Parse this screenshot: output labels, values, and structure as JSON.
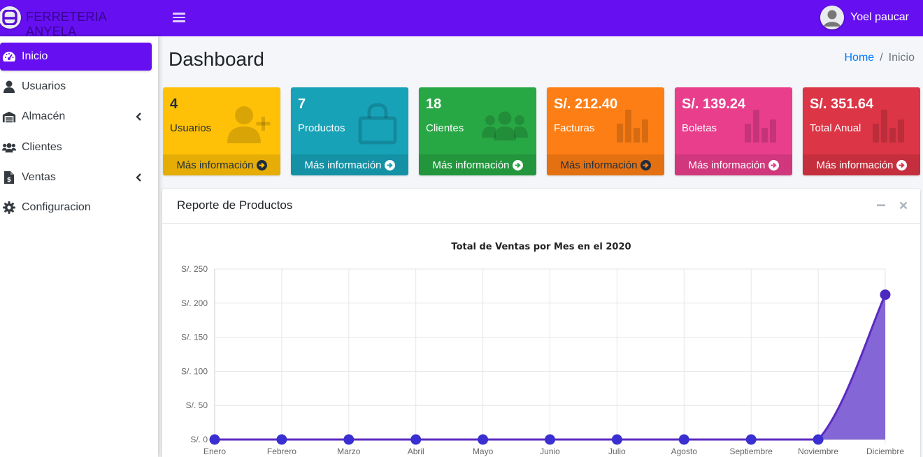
{
  "brand": {
    "name": "FERRETERIA ANYELA",
    "logo_icon": "letter-a-logo-icon"
  },
  "header": {
    "menu_icon": "hamburger-icon",
    "user_name": "Yoel paucar"
  },
  "sidebar": {
    "items": [
      {
        "label": "Inicio",
        "icon": "dashboard-gauge-icon",
        "active": true,
        "has_submenu": false
      },
      {
        "label": "Usuarios",
        "icon": "user-icon",
        "active": false,
        "has_submenu": false
      },
      {
        "label": "Almacén",
        "icon": "warehouse-icon",
        "active": false,
        "has_submenu": true
      },
      {
        "label": "Clientes",
        "icon": "users-icon",
        "active": false,
        "has_submenu": false
      },
      {
        "label": "Ventas",
        "icon": "invoice-dollar-icon",
        "active": false,
        "has_submenu": true
      },
      {
        "label": "Configuracion",
        "icon": "gear-icon",
        "active": false,
        "has_submenu": false
      }
    ]
  },
  "page": {
    "title": "Dashboard",
    "breadcrumb": {
      "home": "Home",
      "separator": "/",
      "current": "Inicio"
    }
  },
  "boxes": [
    {
      "value": "4",
      "label": "Usuarios",
      "footer": "Más información",
      "color": "#ffc107",
      "icon": "user-plus-icon"
    },
    {
      "value": "7",
      "label": "Productos",
      "footer": "Más información",
      "color": "#17a2b8",
      "icon": "shopping-bag-icon"
    },
    {
      "value": "18",
      "label": "Clientes",
      "footer": "Más información",
      "color": "#28a745",
      "icon": "users-icon"
    },
    {
      "value": "S/. 212.40",
      "label": "Facturas",
      "footer": "Más información",
      "color": "#fd7e14",
      "icon": "bar-chart-icon"
    },
    {
      "value": "S/. 139.24",
      "label": "Boletas",
      "footer": "Más información",
      "color": "#e83e8c",
      "icon": "bar-chart-icon"
    },
    {
      "value": "S/. 351.64",
      "label": "Total Anual",
      "footer": "Más información",
      "color": "#dc3545",
      "icon": "bar-chart-icon"
    }
  ],
  "card": {
    "title": "Reporte de Productos",
    "collapse_icon": "minus-icon",
    "close_icon": "close-icon"
  },
  "chart_data": {
    "type": "area",
    "title": "Total de Ventas por Mes en el 2020",
    "categories": [
      "Enero",
      "Febrero",
      "Marzo",
      "Abril",
      "Mayo",
      "Junio",
      "Julio",
      "Agosto",
      "Septiembre",
      "Noviembre",
      "Diciembre"
    ],
    "series": [
      {
        "values": [
          0,
          0,
          0,
          0,
          0,
          0,
          0,
          0,
          0,
          0,
          212.4
        ],
        "color": "#5b2bbf",
        "fill": "#8466d6"
      }
    ],
    "ylim": [
      0,
      250
    ],
    "yticks": [
      0,
      50,
      100,
      150,
      200,
      250
    ],
    "ytick_prefix": "S/. ",
    "grid": true,
    "legend": "none"
  }
}
